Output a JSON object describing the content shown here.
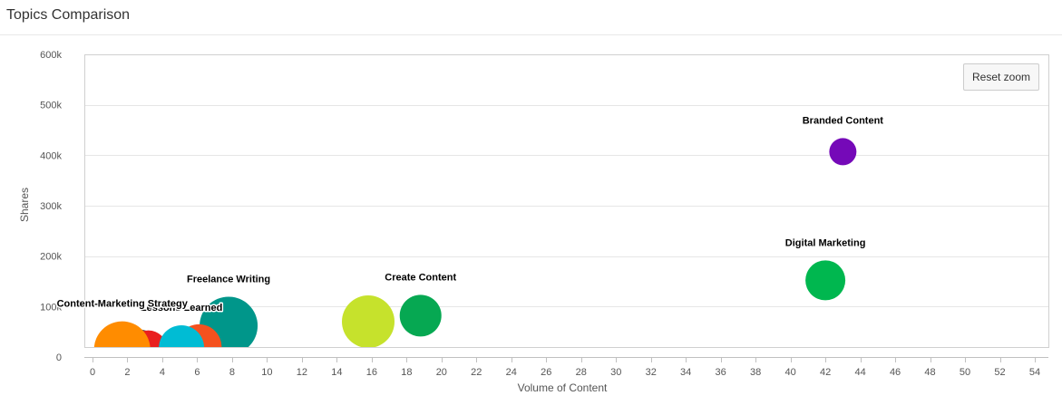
{
  "panel": {
    "title": "Topics Comparison"
  },
  "reset_zoom_label": "Reset zoom",
  "chart_data": {
    "type": "bubble",
    "xlabel": "Volume of Content",
    "ylabel": "Shares",
    "xlim": [
      -1,
      55
    ],
    "ylim": [
      0,
      600000
    ],
    "x_ticks": [
      0,
      2,
      4,
      6,
      8,
      10,
      12,
      14,
      16,
      18,
      20,
      22,
      24,
      26,
      28,
      30,
      32,
      34,
      36,
      38,
      40,
      42,
      44,
      46,
      48,
      50,
      52,
      54
    ],
    "y_ticks": [
      0,
      100000,
      200000,
      300000,
      400000,
      500000,
      600000
    ],
    "y_tick_labels": [
      "0",
      "100k",
      "200k",
      "300k",
      "400k",
      "500k",
      "600k"
    ],
    "grid": "horizontal",
    "points": [
      {
        "label": "",
        "x": 2.7,
        "y": 15000,
        "r": 22,
        "color": "#616161"
      },
      {
        "label": "",
        "x": 3.2,
        "y": 15000,
        "r": 21,
        "color": "#e91e1e"
      },
      {
        "label": "",
        "x": 7.3,
        "y": 15000,
        "r": 19,
        "color": "#ffc107"
      },
      {
        "label": "Freelance Writing",
        "x": 7.8,
        "y": 62000,
        "r": 32,
        "color": "#00968a"
      },
      {
        "label": "",
        "x": 6.1,
        "y": 20000,
        "r": 25,
        "color": "#f4511e"
      },
      {
        "label": "Lessons Learned",
        "x": 5.1,
        "y": 18000,
        "r": 25,
        "color": "#00bcd4"
      },
      {
        "label": "Content-Marketing Strategy",
        "x": 1.7,
        "y": 15000,
        "r": 31,
        "color": "#ff8c00"
      },
      {
        "label": "",
        "x": 15.8,
        "y": 70000,
        "r": 29,
        "color": "#c6e22c"
      },
      {
        "label": "Create Content",
        "x": 18.8,
        "y": 82000,
        "r": 23,
        "color": "#06a852"
      },
      {
        "label": "Digital Marketing",
        "x": 42,
        "y": 152000,
        "r": 22,
        "color": "#00b74f"
      },
      {
        "label": "Branded Content",
        "x": 43,
        "y": 407000,
        "r": 15,
        "color": "#7509b8"
      }
    ]
  }
}
